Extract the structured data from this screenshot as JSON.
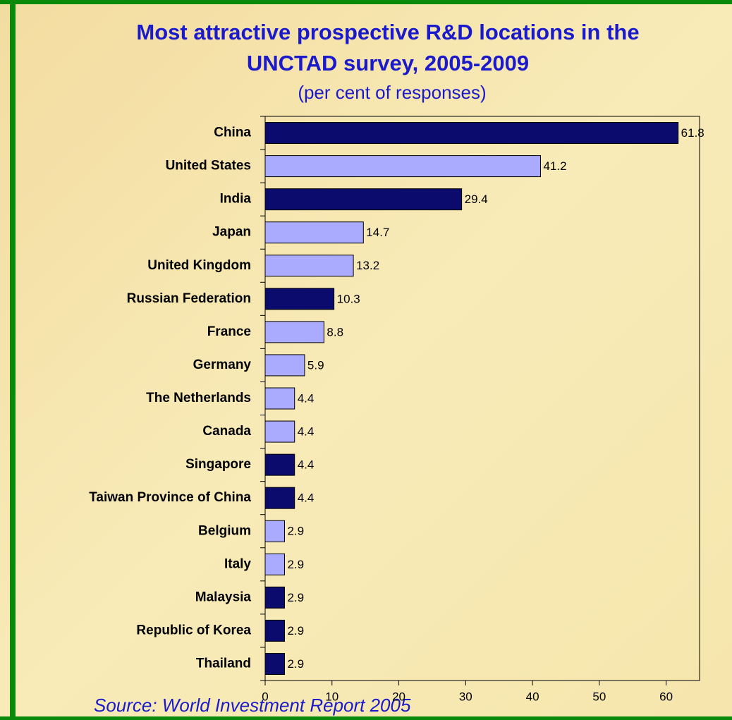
{
  "chart_data": {
    "type": "barh",
    "title": "Most attractive prospective R&D locations in the UNCTAD survey, 2005-2009",
    "subtitle": "(per cent of responses)",
    "source": "Source: World Investment Report 2005",
    "categories": [
      "China",
      "United States",
      "India",
      "Japan",
      "United Kingdom",
      "Russian Federation",
      "France",
      "Germany",
      "The Netherlands",
      "Canada",
      "Singapore",
      "Taiwan Province of China",
      "Belgium",
      "Italy",
      "Malaysia",
      "Republic of Korea",
      "Thailand"
    ],
    "values": [
      61.8,
      41.2,
      29.4,
      14.7,
      13.2,
      10.3,
      8.8,
      5.9,
      4.4,
      4.4,
      4.4,
      4.4,
      2.9,
      2.9,
      2.9,
      2.9,
      2.9
    ],
    "colors": [
      "#0b0b6e",
      "#aaaaff",
      "#0b0b6e",
      "#aaaaff",
      "#aaaaff",
      "#0b0b6e",
      "#aaaaff",
      "#aaaaff",
      "#aaaaff",
      "#aaaaff",
      "#0b0b6e",
      "#0b0b6e",
      "#aaaaff",
      "#aaaaff",
      "#0b0b6e",
      "#0b0b6e",
      "#0b0b6e"
    ],
    "xlim": [
      0,
      65
    ],
    "xticks": [
      0,
      10,
      20,
      30,
      40,
      50,
      60
    ]
  }
}
